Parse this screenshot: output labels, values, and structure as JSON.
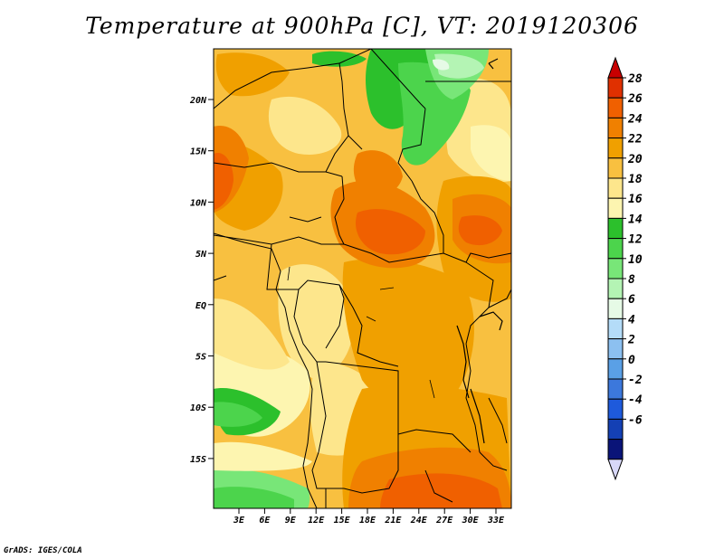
{
  "title": "Temperature at 900hPa [C], VT: 2019120306",
  "credit": "GrADS: IGES/COLA",
  "axes": {
    "lat_labels": [
      "20N",
      "15N",
      "10N",
      "5N",
      "EQ",
      "5S",
      "10S",
      "15S"
    ],
    "lon_labels": [
      "3E",
      "6E",
      "9E",
      "12E",
      "15E",
      "18E",
      "21E",
      "24E",
      "27E",
      "30E",
      "33E"
    ]
  },
  "colorbar": {
    "levels": [
      28,
      26,
      24,
      22,
      20,
      18,
      16,
      14,
      12,
      10,
      8,
      6,
      4,
      2,
      0,
      -2,
      -4,
      -6
    ],
    "colors": [
      "#c80000",
      "#e03000",
      "#f06000",
      "#f08000",
      "#f0a000",
      "#f8c040",
      "#fde68c",
      "#fdf5b0",
      "#2cc02c",
      "#4cd44c",
      "#78e678",
      "#b4f4b4",
      "#e6fae6",
      "#b4dcf8",
      "#8cc0f0",
      "#5aa0e6",
      "#3c78dc",
      "#1e5adc",
      "#1440b4",
      "#0a1478",
      "#d8d8f8"
    ]
  },
  "map_colors": {
    "c16": "#fdf5b0",
    "c18": "#fde68c",
    "c20": "#f8c040",
    "c22": "#f0a000",
    "c24": "#f08000",
    "c26": "#f06000",
    "green_dark": "#2cc02c",
    "green_mid": "#4cd44c",
    "green_light": "#78e678",
    "green_pale": "#b4f4b4",
    "green_white": "#e6fae6"
  }
}
